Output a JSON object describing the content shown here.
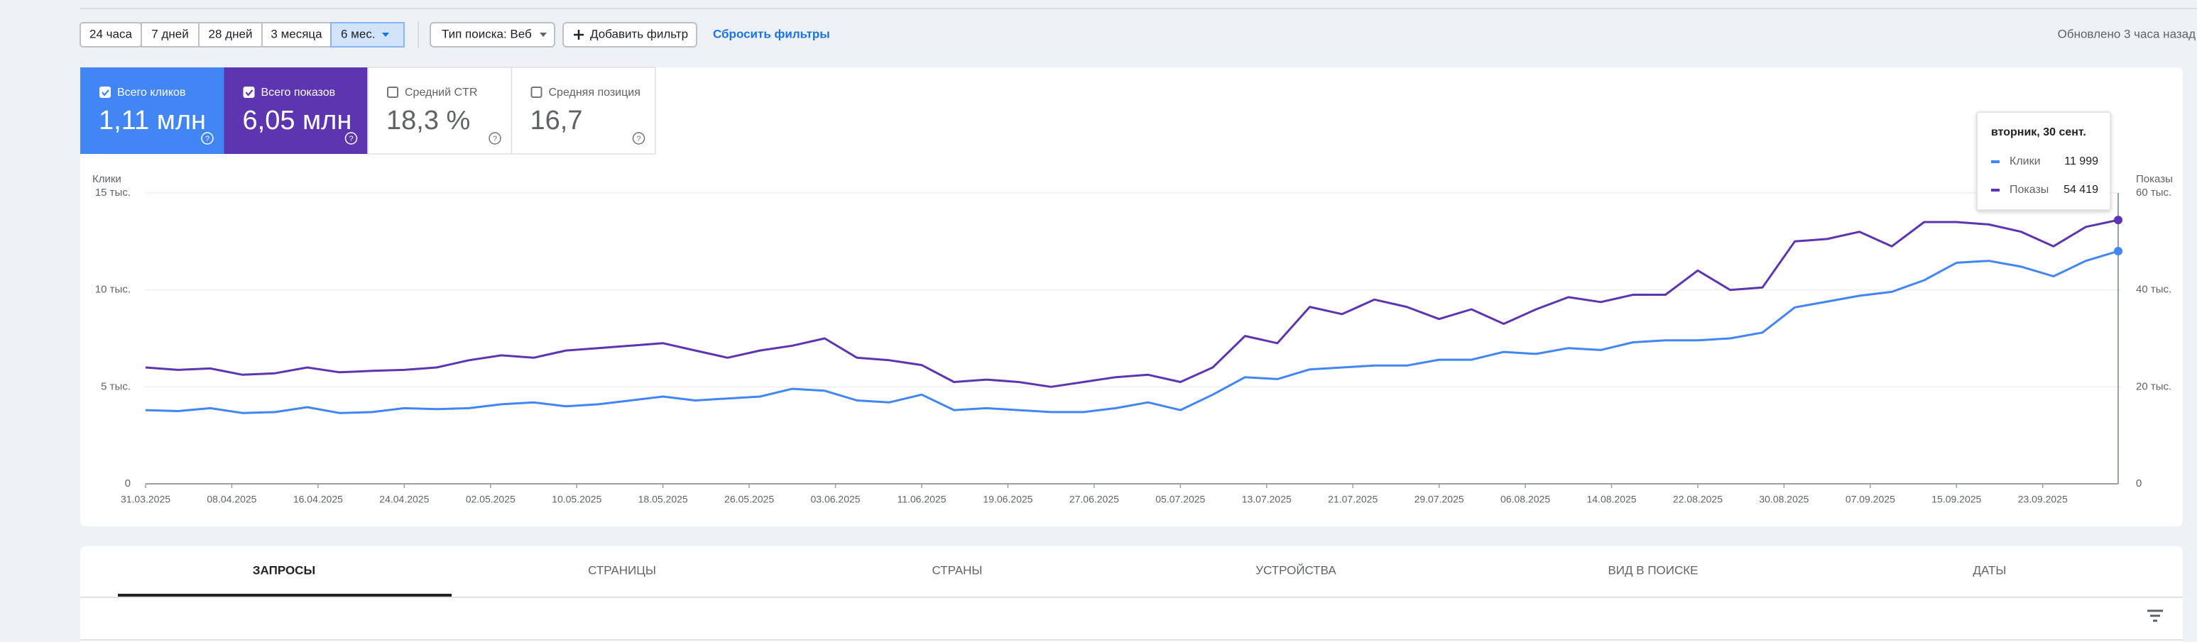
{
  "toolbar": {
    "date_buttons": [
      "24 часа",
      "7 дней",
      "28 дней",
      "3 месяца",
      "6 мес."
    ],
    "search_type": "Тип поиска: Веб",
    "add_filter": "Добавить фильтр",
    "reset_filters": "Сбросить фильтры",
    "updated": "Обновлено 3 часа назад"
  },
  "cards": [
    {
      "label": "Всего кликов",
      "value": "1,11 млн"
    },
    {
      "label": "Всего показов",
      "value": "6,05 млн"
    },
    {
      "label": "Средний CTR",
      "value": "18,3 %"
    },
    {
      "label": "Средняя позиция",
      "value": "16,7"
    }
  ],
  "chart_data": {
    "type": "line",
    "y_label": "Клики",
    "y2_label": "Показы",
    "x": [
      "31.03.2025",
      "03.04.2025",
      "06.04.2025",
      "09.04.2025",
      "12.04.2025",
      "15.04.2025",
      "18.04.2025",
      "21.04.2025",
      "24.04.2025",
      "27.04.2025",
      "30.04.2025",
      "03.05.2025",
      "06.05.2025",
      "09.05.2025",
      "12.05.2025",
      "15.05.2025",
      "18.05.2025",
      "21.05.2025",
      "24.05.2025",
      "27.05.2025",
      "30.05.2025",
      "02.06.2025",
      "05.06.2025",
      "08.06.2025",
      "11.06.2025",
      "14.06.2025",
      "17.06.2025",
      "20.06.2025",
      "23.06.2025",
      "26.06.2025",
      "29.06.2025",
      "02.07.2025",
      "05.07.2025",
      "08.07.2025",
      "11.07.2025",
      "14.07.2025",
      "17.07.2025",
      "20.07.2025",
      "23.07.2025",
      "26.07.2025",
      "29.07.2025",
      "01.08.2025",
      "04.08.2025",
      "07.08.2025",
      "10.08.2025",
      "13.08.2025",
      "16.08.2025",
      "19.08.2025",
      "22.08.2025",
      "25.08.2025",
      "28.08.2025",
      "31.08.2025",
      "03.09.2025",
      "06.09.2025",
      "09.09.2025",
      "12.09.2025",
      "15.09.2025",
      "18.09.2025",
      "21.09.2025",
      "24.09.2025",
      "27.09.2025",
      "30.09.2025"
    ],
    "xlim": [
      "31.03.2025",
      "30.09.2025"
    ],
    "xticks": [
      "31.03.2025",
      "08.04.2025",
      "16.04.2025",
      "24.04.2025",
      "02.05.2025",
      "10.05.2025",
      "18.05.2025",
      "26.05.2025",
      "03.06.2025",
      "11.06.2025",
      "19.06.2025",
      "27.06.2025",
      "05.07.2025",
      "13.07.2025",
      "21.07.2025",
      "29.07.2025",
      "06.08.2025",
      "14.08.2025",
      "22.08.2025",
      "30.08.2025",
      "07.09.2025",
      "15.09.2025",
      "23.09.2025"
    ],
    "ylim": [
      0,
      15000
    ],
    "yticks": [
      0,
      {
        "value": 5000,
        "label": "5 тыс."
      },
      {
        "value": 10000,
        "label": "10 тыс."
      },
      {
        "value": 15000,
        "label": "15 тыс."
      }
    ],
    "y2lim": [
      0,
      60000
    ],
    "y2ticks": [
      0,
      {
        "value": 20000,
        "label": "20 тыс."
      },
      {
        "value": 40000,
        "label": "40 тыс."
      },
      {
        "value": 60000,
        "label": "60 тыс."
      }
    ],
    "grid": true,
    "series": [
      {
        "name": "Клики",
        "color": "#4285f4",
        "values": [
          3800,
          3750,
          3900,
          3650,
          3700,
          3950,
          3650,
          3700,
          3900,
          3850,
          3900,
          4100,
          4200,
          4000,
          4100,
          4300,
          4500,
          4300,
          4400,
          4500,
          4900,
          4800,
          4300,
          4200,
          4600,
          3800,
          3900,
          3800,
          3700,
          3700,
          3900,
          4200,
          3800,
          4600,
          5500,
          5400,
          5900,
          6000,
          6100,
          6100,
          6400,
          6400,
          6800,
          6700,
          7000,
          6900,
          7300,
          7400,
          7400,
          7500,
          7800,
          9100,
          9400,
          9700,
          9900,
          10500,
          11400,
          11500,
          11200,
          10700,
          11500,
          11999
        ]
      },
      {
        "name": "Показы",
        "color": "#5e35b1",
        "axis": "y2",
        "values": [
          24000,
          23500,
          23800,
          22500,
          22800,
          24000,
          23000,
          23300,
          23500,
          24000,
          25500,
          26500,
          26000,
          27500,
          28000,
          28500,
          29000,
          27500,
          26000,
          27500,
          28500,
          30000,
          26000,
          25500,
          24500,
          21000,
          21500,
          21000,
          20000,
          21000,
          22000,
          22500,
          21000,
          24000,
          30500,
          29000,
          36500,
          35000,
          38000,
          36500,
          34000,
          36000,
          33000,
          36000,
          38500,
          37500,
          39000,
          39000,
          44000,
          40000,
          40500,
          50000,
          50500,
          52000,
          49000,
          54000,
          54000,
          53500,
          52000,
          49000,
          53000,
          54419
        ]
      }
    ]
  },
  "tooltip": {
    "title": "вторник, 30 сент.",
    "rows": [
      {
        "label": "Клики",
        "value": "11 999"
      },
      {
        "label": "Показы",
        "value": "54 419"
      }
    ]
  },
  "tabs": [
    "ЗАПРОСЫ",
    "СТРАНИЦЫ",
    "СТРАНЫ",
    "УСТРОЙСТВА",
    "ВИД В ПОИСКЕ",
    "ДАТЫ"
  ]
}
